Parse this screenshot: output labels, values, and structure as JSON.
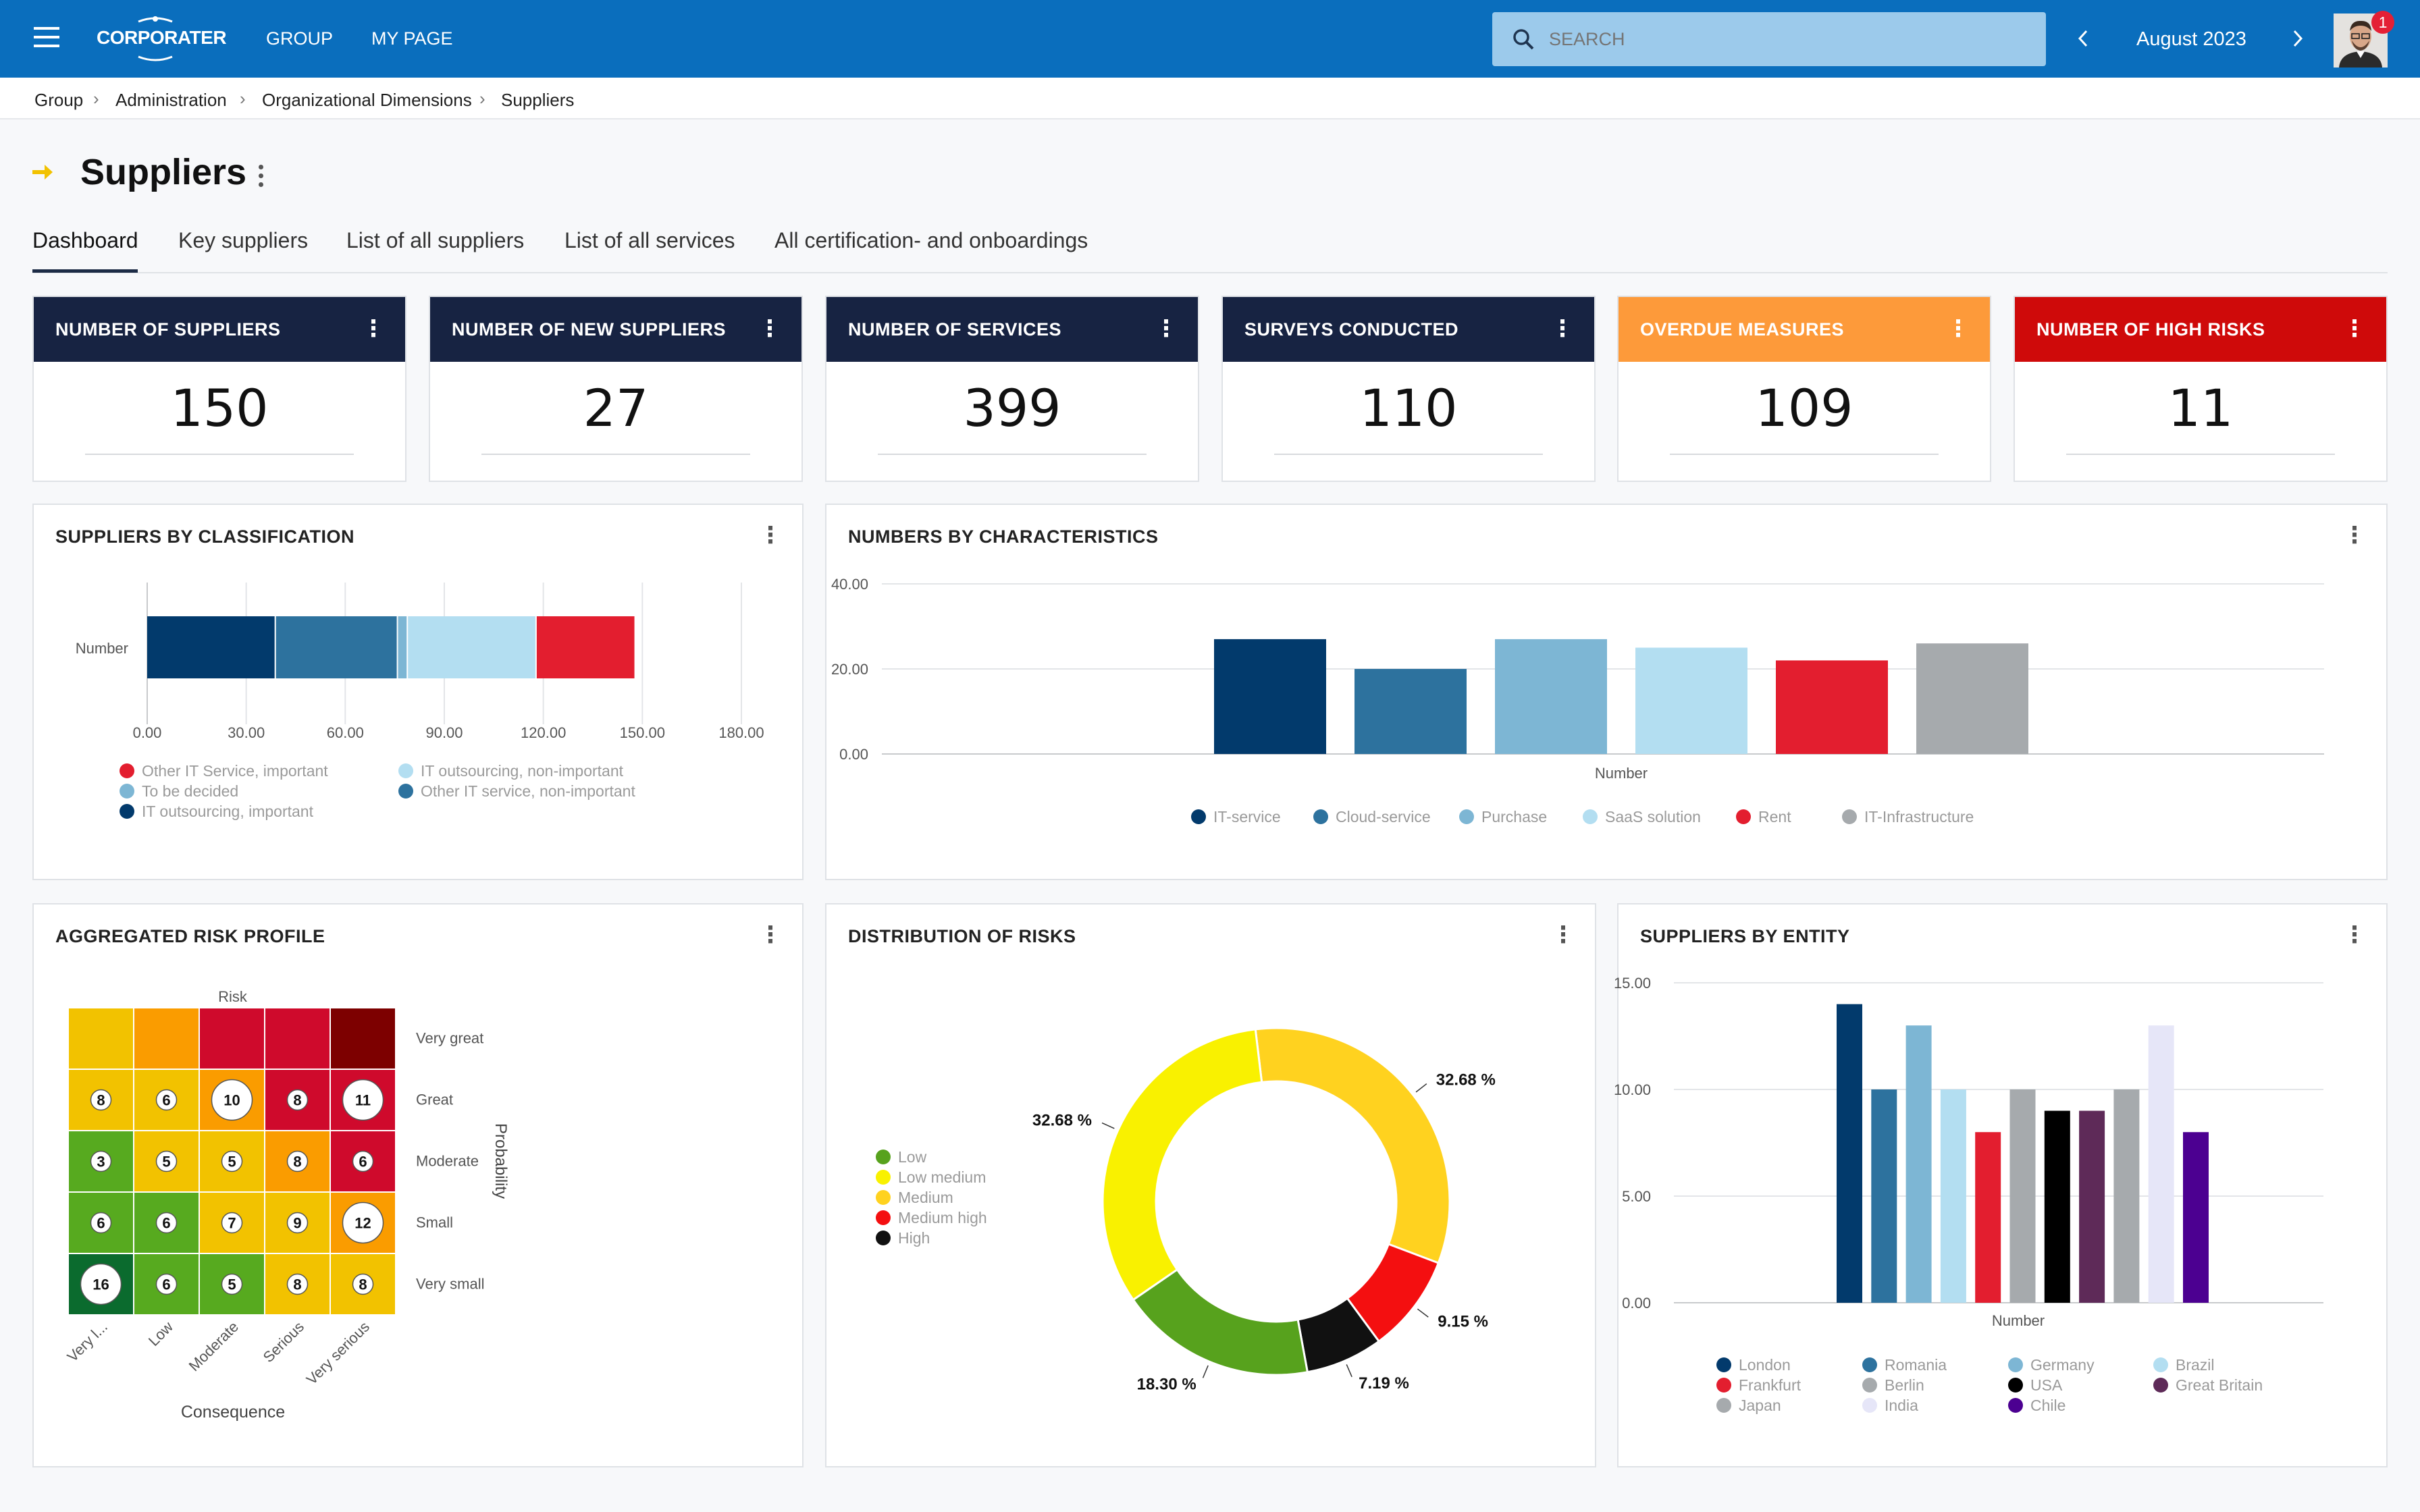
{
  "header": {
    "brand": "CORPORATER",
    "nav": [
      "GROUP",
      "MY PAGE"
    ],
    "search_placeholder": "SEARCH",
    "period": "August 2023",
    "notifications": "1"
  },
  "breadcrumb": [
    "Group",
    "Administration",
    "Organizational Dimensions",
    "Suppliers"
  ],
  "page": {
    "title": "Suppliers"
  },
  "tabs": [
    "Dashboard",
    "Key suppliers",
    "List of all suppliers",
    "List of all services",
    "All certification- and onboardings"
  ],
  "kpis": [
    {
      "label": "NUMBER OF SUPPLIERS",
      "value": "150",
      "color": "#172342"
    },
    {
      "label": "NUMBER OF NEW SUPPLIERS",
      "value": "27",
      "color": "#172342"
    },
    {
      "label": "NUMBER OF SERVICES",
      "value": "399",
      "color": "#172342"
    },
    {
      "label": "SURVEYS CONDUCTED",
      "value": "110",
      "color": "#172342"
    },
    {
      "label": "OVERDUE MEASURES",
      "value": "109",
      "color": "#fd9a3a"
    },
    {
      "label": "NUMBER OF HIGH RISKS",
      "value": "11",
      "color": "#cf0a0a"
    }
  ],
  "panels": {
    "classification": "SUPPLIERS BY CLASSIFICATION",
    "characteristics": "NUMBERS BY CHARACTERISTICS",
    "risk_profile": "AGGREGATED RISK PROFILE",
    "distribution": "DISTRIBUTION OF RISKS",
    "entity": "SUPPLIERS BY ENTITY"
  },
  "chart_data": [
    {
      "type": "bar",
      "orientation": "horizontal",
      "stacked": true,
      "categories": [
        "Number"
      ],
      "series": [
        {
          "name": "IT outsourcing, important",
          "values": [
            39
          ],
          "color": "#023a6c"
        },
        {
          "name": "Other IT service, non-important",
          "values": [
            37
          ],
          "color": "#2d729e"
        },
        {
          "name": "To be decided",
          "values": [
            3
          ],
          "color": "#7db6d4"
        },
        {
          "name": "IT outsourcing, non-important",
          "values": [
            39
          ],
          "color": "#b3def1"
        },
        {
          "name": "Other IT Service, important",
          "values": [
            30
          ],
          "color": "#e31e2f"
        }
      ],
      "legend_order": [
        "Other IT Service, important",
        "IT outsourcing, non-important",
        "To be decided",
        "Other IT service, non-important",
        "IT outsourcing, important"
      ],
      "xticks": [
        "0.00",
        "30.00",
        "60.00",
        "90.00",
        "120.00",
        "150.00",
        "180.00"
      ],
      "xlim": [
        0,
        180
      ],
      "legend": "bottom"
    },
    {
      "type": "bar",
      "categories": [
        "Number"
      ],
      "xlabel": "Number",
      "series": [
        {
          "name": "IT-service",
          "values": [
            27
          ],
          "color": "#023a6c"
        },
        {
          "name": "Cloud-service",
          "values": [
            20
          ],
          "color": "#2d729e"
        },
        {
          "name": "Purchase",
          "values": [
            27
          ],
          "color": "#7db6d4"
        },
        {
          "name": "SaaS solution",
          "values": [
            25
          ],
          "color": "#b3def1"
        },
        {
          "name": "Rent",
          "values": [
            22
          ],
          "color": "#e31e2f"
        },
        {
          "name": "IT-Infrastructure",
          "values": [
            26
          ],
          "color": "#a6aaad"
        }
      ],
      "yticks": [
        "0.00",
        "20.00",
        "40.00"
      ],
      "ylim": [
        0,
        40
      ],
      "legend": "bottom"
    },
    {
      "type": "heatmap",
      "title": "Risk",
      "xlabel": "Consequence",
      "ylabel": "Probability",
      "x": [
        "Very l...",
        "Low",
        "Moderate",
        "Serious",
        "Very serious"
      ],
      "y": [
        "Very great",
        "Great",
        "Moderate",
        "Small",
        "Very small"
      ],
      "colors": [
        [
          "#f2c200",
          "#fa9c00",
          "#cf0a2c",
          "#cf0a2c",
          "#7d0000"
        ],
        [
          "#f2c200",
          "#f2c200",
          "#fa9c00",
          "#cf0a2c",
          "#cf0a2c"
        ],
        [
          "#57aa1f",
          "#f2c200",
          "#f2c200",
          "#fa9c00",
          "#cf0a2c"
        ],
        [
          "#57aa1f",
          "#57aa1f",
          "#f2c200",
          "#f2c200",
          "#fa9c00"
        ],
        [
          "#0b6b2e",
          "#57aa1f",
          "#57aa1f",
          "#f2c200",
          "#f2c200"
        ]
      ],
      "counts": [
        [
          null,
          null,
          null,
          null,
          null
        ],
        [
          8,
          6,
          10,
          8,
          11
        ],
        [
          3,
          5,
          5,
          8,
          6
        ],
        [
          6,
          6,
          7,
          9,
          12
        ],
        [
          16,
          6,
          5,
          8,
          8
        ]
      ]
    },
    {
      "type": "pie",
      "donut": true,
      "slices": [
        {
          "name": "Medium",
          "value": 32.68,
          "label": "32.68 %",
          "color": "#ffd21f"
        },
        {
          "name": "Medium high",
          "value": 9.15,
          "label": "9.15 %",
          "color": "#f40f10"
        },
        {
          "name": "High",
          "value": 7.19,
          "label": "7.19 %",
          "color": "#111111"
        },
        {
          "name": "Low",
          "value": 18.3,
          "label": "18.30 %",
          "color": "#57a21d"
        },
        {
          "name": "Low medium",
          "value": 32.68,
          "label": "32.68 %",
          "color": "#f9f100"
        }
      ],
      "legend_order": [
        "Low",
        "Low medium",
        "Medium",
        "Medium high",
        "High"
      ],
      "legend": "left"
    },
    {
      "type": "bar",
      "categories": [
        "Number"
      ],
      "xlabel": "Number",
      "series": [
        {
          "name": "London",
          "values": [
            14
          ],
          "color": "#023a6c"
        },
        {
          "name": "Romania",
          "values": [
            10
          ],
          "color": "#2d729e"
        },
        {
          "name": "Germany",
          "values": [
            13
          ],
          "color": "#7db6d4"
        },
        {
          "name": "Brazil",
          "values": [
            10
          ],
          "color": "#b3def1"
        },
        {
          "name": "Frankfurt",
          "values": [
            8
          ],
          "color": "#e31e2f"
        },
        {
          "name": "Berlin",
          "values": [
            10
          ],
          "color": "#a6aaad"
        },
        {
          "name": "USA",
          "values": [
            9
          ],
          "color": "#000000"
        },
        {
          "name": "Great Britain",
          "values": [
            9
          ],
          "color": "#5e2a58"
        },
        {
          "name": "Japan",
          "values": [
            10
          ],
          "color": "#a6aaad"
        },
        {
          "name": "India",
          "values": [
            13
          ],
          "color": "#e6e6f8"
        },
        {
          "name": "Chile",
          "values": [
            8
          ],
          "color": "#4c0091"
        }
      ],
      "yticks": [
        "0.00",
        "5.00",
        "10.00",
        "15.00"
      ],
      "ylim": [
        0,
        15
      ],
      "legend": "bottom"
    }
  ]
}
